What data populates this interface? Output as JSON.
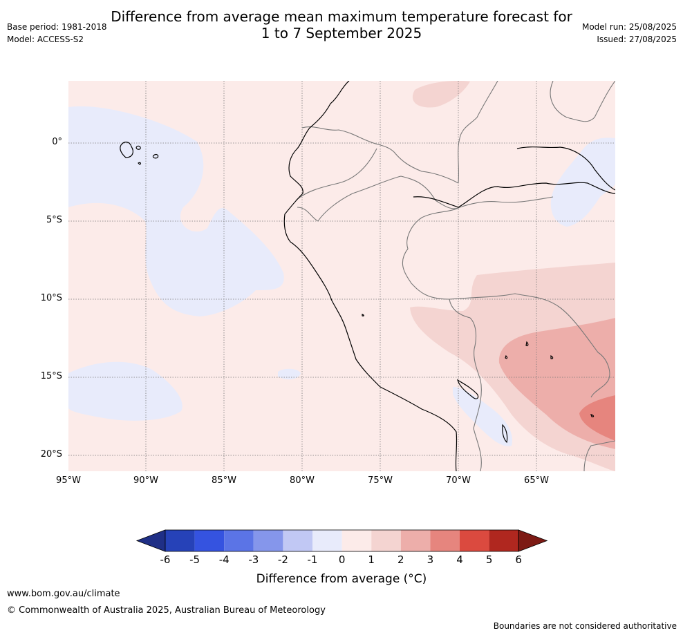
{
  "title_line1": "Difference from average mean maximum temperature forecast for",
  "title_line2": "1 to 7 September 2025",
  "base_period": "Base period: 1981-2018",
  "model": "Model: ACCESS-S2",
  "model_run": "Model run: 25/08/2025",
  "issued": "Issued: 27/08/2025",
  "lat_labels": [
    "0°",
    "5°S",
    "10°S",
    "15°S",
    "20°S"
  ],
  "lon_labels": [
    "95°W",
    "90°W",
    "85°W",
    "80°W",
    "75°W",
    "70°W",
    "65°W"
  ],
  "colorbar": {
    "ticks": [
      "-6",
      "-5",
      "-4",
      "-3",
      "-2",
      "-1",
      "0",
      "1",
      "2",
      "3",
      "4",
      "5",
      "6"
    ],
    "colors": [
      "#1f2f86",
      "#2642b8",
      "#3553e0",
      "#5b74e6",
      "#8596eb",
      "#c1c8f4",
      "#e8ebfb",
      "#fcebe9",
      "#f4d4d1",
      "#edaeaa",
      "#e6857e",
      "#db4a3f",
      "#b0271f",
      "#7d1a14"
    ],
    "label": "Difference from average (°C)"
  },
  "website": "www.bom.gov.au/climate",
  "copyright": "© Commonwealth of Australia 2025, Australian Bureau of Meteorology",
  "disclaimer": "Boundaries are not considered authoritative"
}
